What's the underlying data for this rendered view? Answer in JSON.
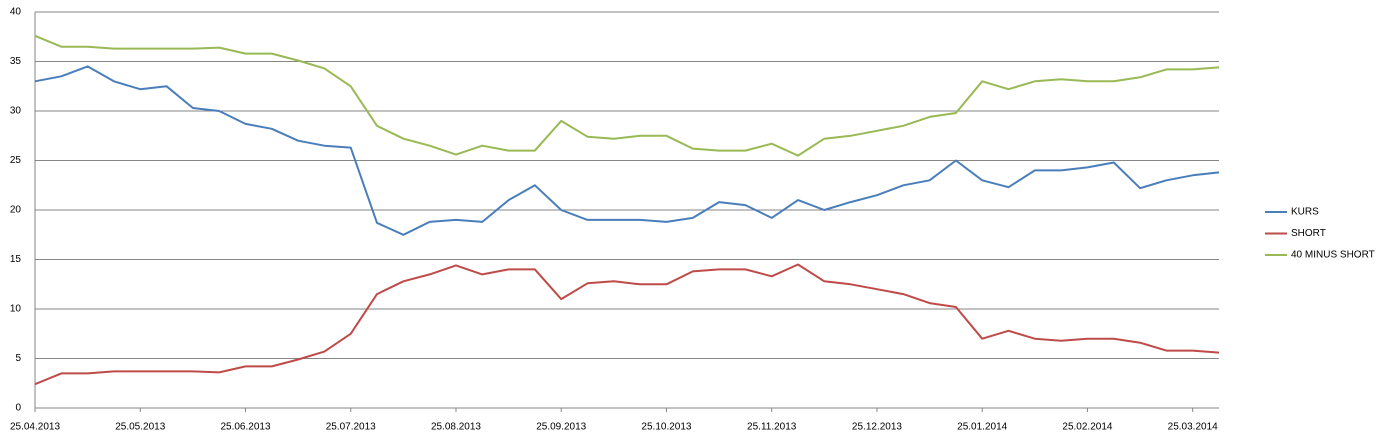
{
  "chart_data": {
    "type": "line",
    "categories": [
      "25.04.2013",
      null,
      null,
      null,
      "25.05.2013",
      null,
      null,
      null,
      "25.06.2013",
      null,
      null,
      null,
      "25.07.2013",
      null,
      null,
      null,
      "25.08.2013",
      null,
      null,
      null,
      "25.09.2013",
      null,
      null,
      null,
      "25.10.2013",
      null,
      null,
      null,
      "25.11.2013",
      null,
      null,
      null,
      "25.12.2013",
      null,
      null,
      null,
      "25.01.2014",
      null,
      null,
      null,
      "25.02.2014",
      null,
      null,
      null,
      "25.03.2014",
      null
    ],
    "series": [
      {
        "name": "KURS",
        "color": "#4a7ebb",
        "values": [
          33,
          33.5,
          34.5,
          33,
          32.2,
          32.5,
          30.3,
          30,
          28.7,
          28.2,
          27,
          26.5,
          26.3,
          18.7,
          17.5,
          18.8,
          19,
          18.8,
          21,
          22.5,
          20,
          19,
          19,
          19,
          18.8,
          19.2,
          20.8,
          20.5,
          19.2,
          21,
          20,
          20.8,
          21.5,
          22.5,
          23,
          25,
          23,
          22.3,
          24,
          24,
          24.3,
          24.8,
          22.2,
          23,
          23.5,
          23.8
        ]
      },
      {
        "name": "SHORT",
        "color": "#be4b48",
        "values": [
          2.4,
          3.5,
          3.5,
          3.7,
          3.7,
          3.7,
          3.7,
          3.6,
          4.2,
          4.2,
          4.9,
          5.7,
          7.5,
          11.5,
          12.8,
          13.5,
          14.4,
          13.5,
          14,
          14,
          11,
          12.6,
          12.8,
          12.5,
          12.5,
          13.8,
          14,
          14,
          13.3,
          14.5,
          12.8,
          12.5,
          12,
          11.5,
          10.6,
          10.2,
          7,
          7.8,
          7,
          6.8,
          7,
          7,
          6.6,
          5.8,
          5.8,
          5.6
        ]
      },
      {
        "name": "40 MINUS SHORT",
        "color": "#98b954",
        "values": [
          37.6,
          36.5,
          36.5,
          36.3,
          36.3,
          36.3,
          36.3,
          36.4,
          35.8,
          35.8,
          35.1,
          34.3,
          32.5,
          28.5,
          27.2,
          26.5,
          25.6,
          26.5,
          26,
          26,
          29,
          27.4,
          27.2,
          27.5,
          27.5,
          26.2,
          26,
          26,
          26.7,
          25.5,
          27.2,
          27.5,
          28,
          28.5,
          29.4,
          29.8,
          33,
          32.2,
          33,
          33.2,
          33,
          33,
          33.4,
          34.2,
          34.2,
          34.4
        ]
      }
    ],
    "ylim": [
      0,
      40
    ],
    "yticks": [
      0,
      5,
      10,
      15,
      20,
      25,
      30,
      35,
      40
    ],
    "grid": true,
    "legend": "right"
  }
}
